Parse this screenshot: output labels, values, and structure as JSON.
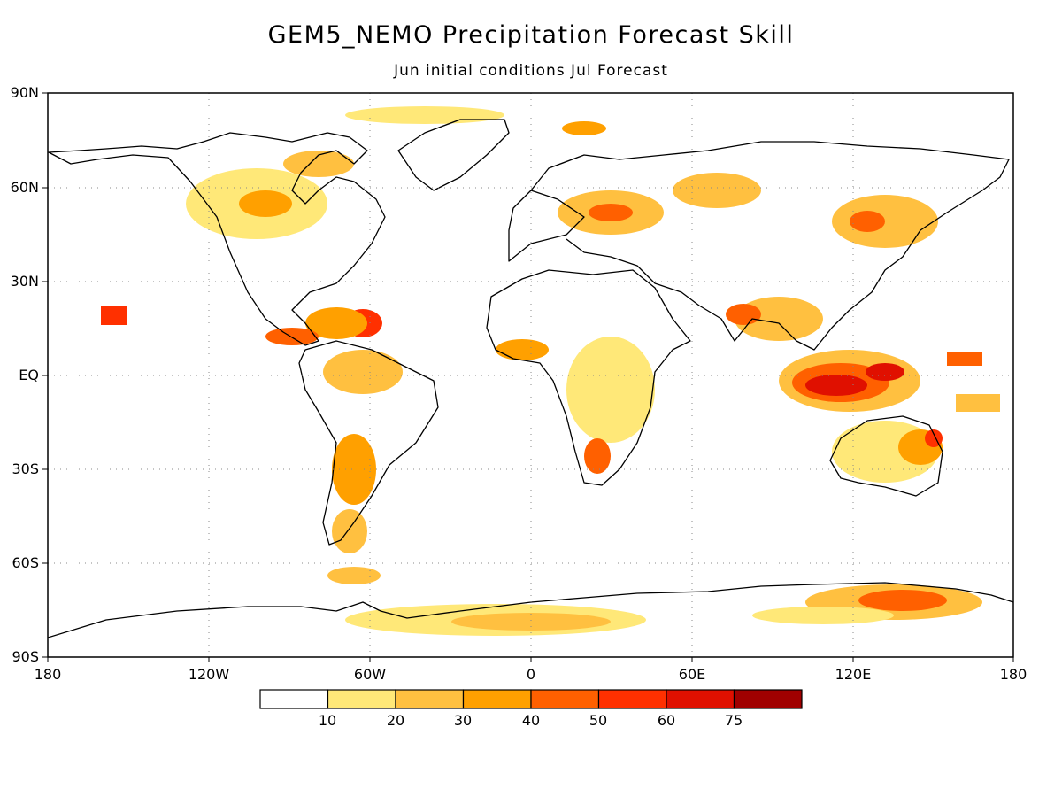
{
  "title": "GEM5_NEMO Precipitation Forecast Skill",
  "subtitle": "Jun initial conditions  Jul Forecast",
  "lat_labels": [
    "90N",
    "60N",
    "30N",
    "EQ",
    "30S",
    "60S",
    "90S"
  ],
  "lon_labels": [
    "180",
    "120W",
    "60W",
    "0",
    "60E",
    "120E",
    "180"
  ],
  "colorbar": {
    "labels": [
      "10",
      "20",
      "30",
      "40",
      "50",
      "60",
      "75"
    ],
    "colors": [
      "#ffffff",
      "#ffe878",
      "#ffc040",
      "#ffa000",
      "#ff6000",
      "#ff3000",
      "#e01000",
      "#a00000"
    ]
  }
}
